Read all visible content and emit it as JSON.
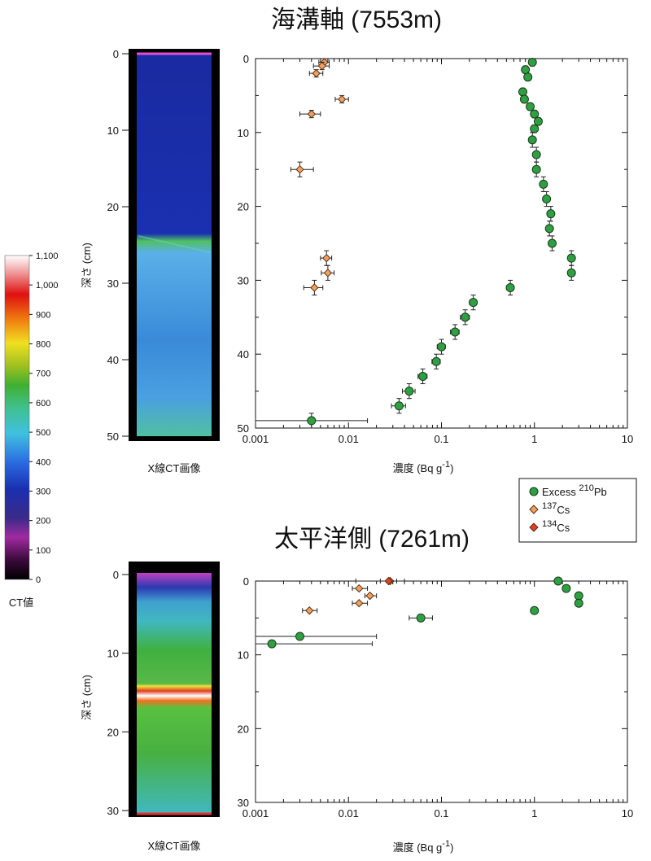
{
  "colorbar": {
    "label": "CT値",
    "ticks": [
      "1,100",
      "1,000",
      "900",
      "800",
      "700",
      "600",
      "500",
      "400",
      "300",
      "200",
      "100",
      "0"
    ]
  },
  "legend": {
    "items": [
      {
        "prefix": "Excess ",
        "sup": "210",
        "suffix": "Pb",
        "color": "#2ea043"
      },
      {
        "prefix": "",
        "sup": "137",
        "suffix": "Cs",
        "color": "#f0a060"
      },
      {
        "prefix": "",
        "sup": "134",
        "suffix": "Cs",
        "color": "#e0402a"
      }
    ]
  },
  "chart_data": [
    {
      "type": "scatter",
      "title": "海溝軸 (7553m)",
      "image_label": "X線CT画像",
      "xlabel": "濃度 (Bq g",
      "xlabel_sup": "-1",
      "xlabel_close": ")",
      "ylabel": "深さ (cm)",
      "xscale": "log",
      "xlim": [
        0.001,
        10
      ],
      "ylim": [
        0,
        50
      ],
      "xticks": [
        "0.001",
        "0.01",
        "0.1",
        "1",
        "10"
      ],
      "yticks": [
        "0",
        "10",
        "20",
        "30",
        "40",
        "50"
      ],
      "ct_ticks": [
        "0",
        "10",
        "20",
        "30",
        "40",
        "50"
      ],
      "series": [
        {
          "name": "Excess 210Pb",
          "color": "#2ea043",
          "points": [
            {
              "x": 0.95,
              "y": 0.5,
              "xerr": [
                0.88,
                1.02
              ],
              "yerr": [
                0,
                1
              ]
            },
            {
              "x": 0.8,
              "y": 1.5,
              "xerr": [
                0.75,
                0.86
              ],
              "yerr": [
                1,
                2
              ]
            },
            {
              "x": 0.85,
              "y": 2.5,
              "xerr": [
                0.79,
                0.91
              ],
              "yerr": [
                2,
                3
              ]
            },
            {
              "x": 0.75,
              "y": 4.5,
              "xerr": [
                0.7,
                0.8
              ],
              "yerr": [
                4,
                5
              ]
            },
            {
              "x": 0.78,
              "y": 5.5,
              "xerr": [
                0.72,
                0.84
              ],
              "yerr": [
                5,
                6
              ]
            },
            {
              "x": 0.9,
              "y": 6.5,
              "xerr": [
                0.84,
                0.96
              ],
              "yerr": [
                6,
                7
              ]
            },
            {
              "x": 1.0,
              "y": 7.5,
              "xerr": [
                0.93,
                1.07
              ],
              "yerr": [
                7,
                8
              ]
            },
            {
              "x": 1.1,
              "y": 8.5,
              "xerr": [
                1.02,
                1.18
              ],
              "yerr": [
                8,
                9
              ]
            },
            {
              "x": 1.0,
              "y": 9.5,
              "xerr": [
                0.93,
                1.07
              ],
              "yerr": [
                9,
                10
              ]
            },
            {
              "x": 0.95,
              "y": 11,
              "xerr": [
                0.88,
                1.02
              ],
              "yerr": [
                10,
                12
              ]
            },
            {
              "x": 1.05,
              "y": 13,
              "xerr": [
                0.97,
                1.13
              ],
              "yerr": [
                12,
                14
              ]
            },
            {
              "x": 1.05,
              "y": 15,
              "xerr": [
                0.97,
                1.13
              ],
              "yerr": [
                14,
                16
              ]
            },
            {
              "x": 1.25,
              "y": 17,
              "xerr": [
                1.16,
                1.34
              ],
              "yerr": [
                16,
                18
              ]
            },
            {
              "x": 1.35,
              "y": 19,
              "xerr": [
                1.25,
                1.45
              ],
              "yerr": [
                18,
                20
              ]
            },
            {
              "x": 1.5,
              "y": 21,
              "xerr": [
                1.39,
                1.61
              ],
              "yerr": [
                20,
                22
              ]
            },
            {
              "x": 1.45,
              "y": 23,
              "xerr": [
                1.34,
                1.56
              ],
              "yerr": [
                22,
                24
              ]
            },
            {
              "x": 1.55,
              "y": 25,
              "xerr": [
                1.44,
                1.66
              ],
              "yerr": [
                24,
                26
              ]
            },
            {
              "x": 2.5,
              "y": 27,
              "xerr": [
                2.3,
                2.7
              ],
              "yerr": [
                26,
                28
              ]
            },
            {
              "x": 2.5,
              "y": 29,
              "xerr": [
                2.3,
                2.7
              ],
              "yerr": [
                28,
                30
              ]
            },
            {
              "x": 0.55,
              "y": 31,
              "xerr": [
                0.5,
                0.6
              ],
              "yerr": [
                30,
                32
              ]
            },
            {
              "x": 0.22,
              "y": 33,
              "xerr": [
                0.2,
                0.24
              ],
              "yerr": [
                32,
                34
              ]
            },
            {
              "x": 0.18,
              "y": 35,
              "xerr": [
                0.16,
                0.2
              ],
              "yerr": [
                34,
                36
              ]
            },
            {
              "x": 0.14,
              "y": 37,
              "xerr": [
                0.125,
                0.155
              ],
              "yerr": [
                36,
                38
              ]
            },
            {
              "x": 0.1,
              "y": 39,
              "xerr": [
                0.09,
                0.11
              ],
              "yerr": [
                38,
                40
              ]
            },
            {
              "x": 0.088,
              "y": 41,
              "xerr": [
                0.079,
                0.097
              ],
              "yerr": [
                40,
                42
              ]
            },
            {
              "x": 0.063,
              "y": 43,
              "xerr": [
                0.056,
                0.07
              ],
              "yerr": [
                42,
                44
              ]
            },
            {
              "x": 0.045,
              "y": 45,
              "xerr": [
                0.038,
                0.052
              ],
              "yerr": [
                44,
                46
              ]
            },
            {
              "x": 0.035,
              "y": 47,
              "xerr": [
                0.029,
                0.041
              ],
              "yerr": [
                46,
                48
              ]
            },
            {
              "x": 0.004,
              "y": 49,
              "xerr": [
                0.001,
                0.016
              ],
              "yerr": [
                48,
                50
              ]
            }
          ]
        },
        {
          "name": "137Cs",
          "color": "#f0a060",
          "points": [
            {
              "x": 0.0055,
              "y": 0.5,
              "xerr": [
                0.0048,
                0.0062
              ],
              "yerr": [
                0,
                1
              ]
            },
            {
              "x": 0.0052,
              "y": 1.0,
              "xerr": [
                0.0042,
                0.0062
              ],
              "yerr": [
                0.5,
                1.5
              ]
            },
            {
              "x": 0.0045,
              "y": 2.0,
              "xerr": [
                0.0038,
                0.0053
              ],
              "yerr": [
                1.5,
                2.5
              ]
            },
            {
              "x": 0.0085,
              "y": 5.5,
              "xerr": [
                0.0072,
                0.01
              ],
              "yerr": [
                5,
                6
              ]
            },
            {
              "x": 0.004,
              "y": 7.5,
              "xerr": [
                0.003,
                0.005
              ],
              "yerr": [
                7,
                8
              ]
            },
            {
              "x": 0.003,
              "y": 15,
              "xerr": [
                0.0024,
                0.0042
              ],
              "yerr": [
                14,
                16
              ]
            },
            {
              "x": 0.0058,
              "y": 27,
              "xerr": [
                0.005,
                0.0066
              ],
              "yerr": [
                26,
                28
              ]
            },
            {
              "x": 0.006,
              "y": 29,
              "xerr": [
                0.0051,
                0.007
              ],
              "yerr": [
                28,
                30
              ]
            },
            {
              "x": 0.0043,
              "y": 31,
              "xerr": [
                0.0033,
                0.0053
              ],
              "yerr": [
                30,
                32
              ]
            }
          ]
        }
      ]
    },
    {
      "type": "scatter",
      "title": "太平洋側 (7261m)",
      "image_label": "X線CT画像",
      "xlabel": "濃度 (Bq g",
      "xlabel_sup": "-1",
      "xlabel_close": ")",
      "ylabel": "深さ (cm)",
      "xscale": "log",
      "xlim": [
        0.001,
        10
      ],
      "ylim": [
        0,
        30
      ],
      "xticks": [
        "0.001",
        "0.01",
        "0.1",
        "1",
        "10"
      ],
      "yticks": [
        "0",
        "10",
        "20",
        "30"
      ],
      "ct_ticks": [
        "0",
        "10",
        "20",
        "30"
      ],
      "series": [
        {
          "name": "Excess 210Pb",
          "color": "#2ea043",
          "points": [
            {
              "x": 1.8,
              "y": 0.0,
              "xerr": [
                1.7,
                1.9
              ],
              "yerr": [
                0,
                0
              ]
            },
            {
              "x": 2.2,
              "y": 1.0,
              "xerr": [
                2.1,
                2.3
              ],
              "yerr": [
                1,
                1
              ]
            },
            {
              "x": 3.0,
              "y": 2.0,
              "xerr": [
                2.9,
                3.1
              ],
              "yerr": [
                2,
                2
              ]
            },
            {
              "x": 3.0,
              "y": 3.0,
              "xerr": [
                2.9,
                3.1
              ],
              "yerr": [
                3,
                3
              ]
            },
            {
              "x": 1.0,
              "y": 4.0,
              "xerr": [
                0.95,
                1.05
              ],
              "yerr": [
                4,
                4
              ]
            },
            {
              "x": 0.06,
              "y": 5.0,
              "xerr": [
                0.045,
                0.08
              ],
              "yerr": [
                5,
                5
              ]
            },
            {
              "x": 0.003,
              "y": 7.5,
              "xerr": [
                0.001,
                0.02
              ],
              "yerr": [
                7.5,
                7.5
              ]
            },
            {
              "x": 0.0015,
              "y": 8.5,
              "xerr": [
                0.001,
                0.018
              ],
              "yerr": [
                8.5,
                8.5
              ]
            }
          ]
        },
        {
          "name": "137Cs",
          "color": "#f0a060",
          "points": [
            {
              "x": 0.028,
              "y": 0.0,
              "xerr": [
                0.012,
                0.04
              ],
              "yerr": [
                0,
                0
              ]
            },
            {
              "x": 0.013,
              "y": 1.0,
              "xerr": [
                0.011,
                0.016
              ],
              "yerr": [
                1,
                1
              ]
            },
            {
              "x": 0.017,
              "y": 2.0,
              "xerr": [
                0.015,
                0.02
              ],
              "yerr": [
                2,
                2
              ]
            },
            {
              "x": 0.013,
              "y": 3.0,
              "xerr": [
                0.011,
                0.016
              ],
              "yerr": [
                3,
                3
              ]
            },
            {
              "x": 0.0038,
              "y": 4.0,
              "xerr": [
                0.0032,
                0.0046
              ],
              "yerr": [
                4,
                4
              ]
            }
          ]
        },
        {
          "name": "134Cs",
          "color": "#e0402a",
          "points": [
            {
              "x": 0.027,
              "y": 0.0,
              "xerr": [
                0.022,
                0.033
              ],
              "yerr": [
                0,
                0
              ]
            }
          ]
        }
      ]
    }
  ]
}
